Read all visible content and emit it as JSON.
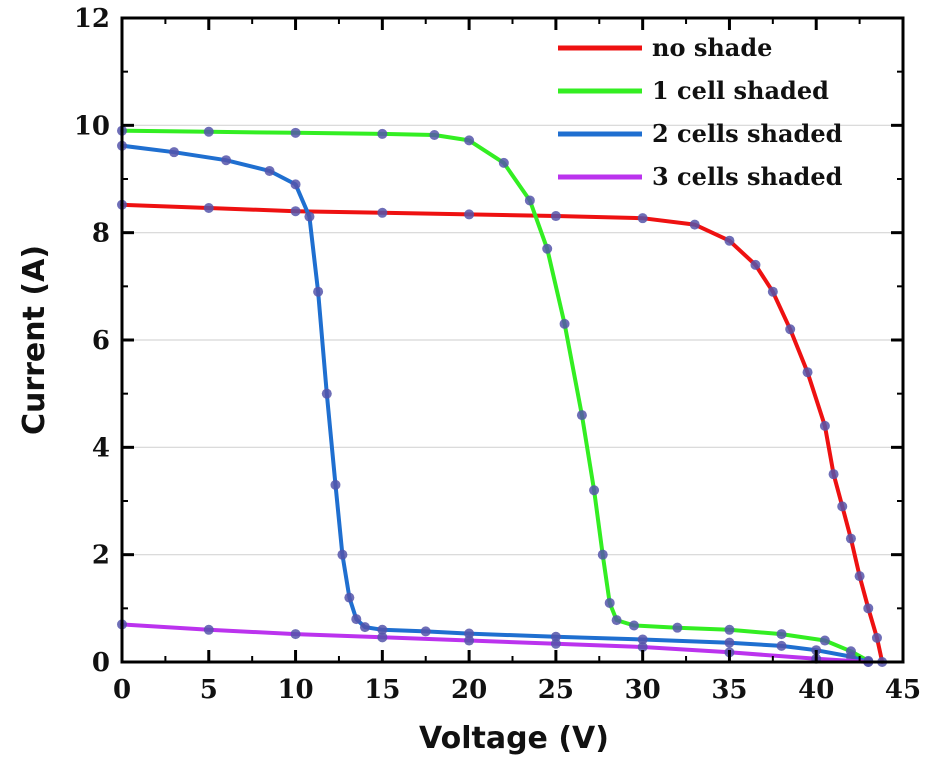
{
  "chart_data": {
    "type": "line",
    "xlabel": "Voltage (V)",
    "ylabel": "Current (A)",
    "xlim": [
      0,
      45
    ],
    "ylim": [
      0,
      12
    ],
    "xticks": [
      0,
      5,
      10,
      15,
      20,
      25,
      30,
      35,
      40,
      45
    ],
    "yticks": [
      0,
      2,
      4,
      6,
      8,
      10,
      12
    ],
    "grid": "horizontal",
    "legend_position": "top-right",
    "marker_color": "#5555aa",
    "series": [
      {
        "name": "no shade",
        "color": "#ee1111",
        "x": [
          0,
          5,
          10,
          15,
          20,
          25,
          30,
          33,
          35,
          36.5,
          37.5,
          38.5,
          39.5,
          40.5,
          41,
          41.5,
          42,
          42.5,
          43,
          43.5,
          43.8
        ],
        "y": [
          8.52,
          8.46,
          8.4,
          8.37,
          8.34,
          8.31,
          8.27,
          8.15,
          7.85,
          7.4,
          6.9,
          6.2,
          5.4,
          4.4,
          3.5,
          2.9,
          2.3,
          1.6,
          1.0,
          0.45,
          0.0
        ]
      },
      {
        "name": "1 cell shaded",
        "color": "#33ee22",
        "x": [
          0,
          5,
          10,
          15,
          18,
          20,
          22,
          23.5,
          24.5,
          25.5,
          26.5,
          27.2,
          27.7,
          28.1,
          28.5,
          29.5,
          32,
          35,
          38,
          40.5,
          42,
          43
        ],
        "y": [
          9.9,
          9.88,
          9.86,
          9.84,
          9.82,
          9.72,
          9.3,
          8.6,
          7.7,
          6.3,
          4.6,
          3.2,
          2.0,
          1.1,
          0.78,
          0.68,
          0.64,
          0.6,
          0.52,
          0.4,
          0.2,
          0.02
        ]
      },
      {
        "name": "2 cells shaded",
        "color": "#1f6fd0",
        "x": [
          0,
          3,
          6,
          8.5,
          10,
          10.8,
          11.3,
          11.8,
          12.3,
          12.7,
          13.1,
          13.5,
          14,
          15,
          17.5,
          20,
          25,
          30,
          35,
          38,
          40,
          42,
          43
        ],
        "y": [
          9.62,
          9.5,
          9.35,
          9.15,
          8.9,
          8.3,
          6.9,
          5.0,
          3.3,
          2.0,
          1.2,
          0.8,
          0.65,
          0.6,
          0.57,
          0.53,
          0.47,
          0.42,
          0.36,
          0.3,
          0.22,
          0.1,
          0.0
        ]
      },
      {
        "name": "3 cells shaded",
        "color": "#bb33ee",
        "x": [
          0,
          5,
          10,
          15,
          20,
          25,
          30,
          35,
          40,
          43
        ],
        "y": [
          0.7,
          0.6,
          0.52,
          0.46,
          0.4,
          0.34,
          0.28,
          0.18,
          0.06,
          0.0
        ]
      }
    ]
  }
}
